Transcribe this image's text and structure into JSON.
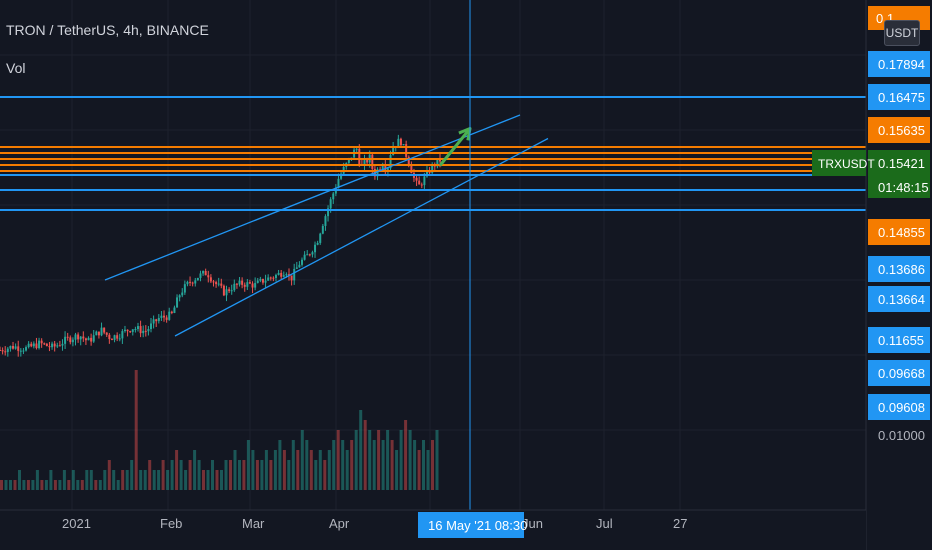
{
  "header": {
    "symbol_title": "TRON / TetherUS, 4h, BINANCE",
    "indicator": "Vol",
    "currency_button": "USDT"
  },
  "colors": {
    "background": "#131722",
    "grid": "#1e222d",
    "axis_text": "#b2b5be",
    "channel": "#2196f3",
    "level_blue": "#2196f3",
    "level_orange": "#f57c00",
    "arrow": "#4caf50",
    "price_label_green": "#1b6b1b",
    "up_candle": "#26a69a",
    "down_candle": "#ef5350"
  },
  "chart_data": {
    "type": "candlestick",
    "time_axis": {
      "labels": [
        "2021",
        "Feb",
        "Mar",
        "Apr",
        "May",
        "Jun",
        "Jul",
        "27"
      ],
      "crosshair_label": "16 May '21   08:30"
    },
    "price_axis": {
      "top_partial_label": "0.1",
      "levels": [
        {
          "value": 0.17894,
          "label": "0.17894",
          "style": "blue"
        },
        {
          "value": 0.16475,
          "label": "0.16475",
          "style": "blue"
        },
        {
          "value": 0.15635,
          "label": "0.15635",
          "style": "orange"
        },
        {
          "value": 0.15421,
          "label": "0.15421",
          "style": "green",
          "tag": "TRXUSDT",
          "countdown": "01:48:15"
        },
        {
          "value": 0.14855,
          "label": "0.14855",
          "style": "orange"
        },
        {
          "value": 0.13686,
          "label": "0.13686",
          "style": "blue"
        },
        {
          "value": 0.13664,
          "label": "0.13664",
          "style": "blue"
        },
        {
          "value": 0.11655,
          "label": "0.11655",
          "style": "blue"
        },
        {
          "value": 0.09668,
          "label": "0.09668",
          "style": "blue"
        },
        {
          "value": 0.09608,
          "label": "0.09608",
          "style": "blue"
        },
        {
          "value": 0.01,
          "label": "0.01000",
          "style": "plain"
        }
      ]
    },
    "price_path": [
      [
        0,
        0.0315
      ],
      [
        0.03,
        0.0322
      ],
      [
        0.06,
        0.0318
      ],
      [
        0.09,
        0.0328
      ],
      [
        0.12,
        0.032
      ],
      [
        0.15,
        0.0335
      ],
      [
        0.18,
        0.0345
      ],
      [
        0.2,
        0.0332
      ],
      [
        0.23,
        0.0355
      ],
      [
        0.25,
        0.034
      ],
      [
        0.27,
        0.0345
      ],
      [
        0.3,
        0.036
      ],
      [
        0.33,
        0.0352
      ],
      [
        0.36,
        0.0378
      ],
      [
        0.39,
        0.0385
      ],
      [
        0.41,
        0.043
      ],
      [
        0.43,
        0.045
      ],
      [
        0.45,
        0.0462
      ],
      [
        0.47,
        0.047
      ],
      [
        0.49,
        0.0448
      ],
      [
        0.51,
        0.043
      ],
      [
        0.53,
        0.0442
      ],
      [
        0.55,
        0.0448
      ],
      [
        0.58,
        0.0445
      ],
      [
        0.6,
        0.0455
      ],
      [
        0.63,
        0.0465
      ],
      [
        0.65,
        0.0475
      ],
      [
        0.66,
        0.0455
      ],
      [
        0.68,
        0.0488
      ],
      [
        0.7,
        0.0505
      ],
      [
        0.72,
        0.053
      ],
      [
        0.73,
        0.056
      ],
      [
        0.75,
        0.061
      ],
      [
        0.77,
        0.066
      ],
      [
        0.79,
        0.069
      ],
      [
        0.81,
        0.072
      ],
      [
        0.82,
        0.068
      ],
      [
        0.84,
        0.07
      ],
      [
        0.85,
        0.0665
      ],
      [
        0.87,
        0.069
      ],
      [
        0.88,
        0.0675
      ],
      [
        0.89,
        0.072
      ],
      [
        0.91,
        0.0735
      ],
      [
        0.93,
        0.069
      ],
      [
        0.94,
        0.066
      ],
      [
        0.95,
        0.064
      ],
      [
        0.97,
        0.0665
      ],
      [
        0.98,
        0.068
      ],
      [
        1.0,
        0.0695
      ]
    ],
    "volume_profile": [
      1,
      1,
      1,
      1,
      2,
      1,
      1,
      1,
      2,
      1,
      1,
      2,
      1,
      1,
      2,
      1,
      2,
      1,
      1,
      2,
      2,
      1,
      1,
      2,
      3,
      2,
      1,
      2,
      2,
      3,
      12,
      2,
      2,
      3,
      2,
      2,
      3,
      2,
      3,
      4,
      3,
      2,
      3,
      4,
      3,
      2,
      2,
      3,
      2,
      2,
      3,
      3,
      4,
      3,
      3,
      5,
      4,
      3,
      3,
      4,
      3,
      4,
      5,
      4,
      3,
      5,
      4,
      6,
      5,
      4,
      3,
      4,
      3,
      4,
      5,
      6,
      5,
      4,
      5,
      6,
      8,
      7,
      6,
      5,
      6,
      5,
      6,
      5,
      4,
      6,
      7,
      6,
      5,
      4,
      5,
      4,
      5,
      6
    ],
    "drawings": {
      "upper_channel": {
        "from": [
          0.0,
          0.0455
        ],
        "to": [
          1.0,
          0.0785
        ]
      },
      "lower_channel": {
        "from": [
          0.0,
          0.0343
        ],
        "to": [
          1.0,
          0.0738
        ]
      },
      "arrow": {
        "from": [
          0.0,
          0.0684
        ],
        "to": [
          1.0,
          0.0758
        ]
      }
    }
  }
}
